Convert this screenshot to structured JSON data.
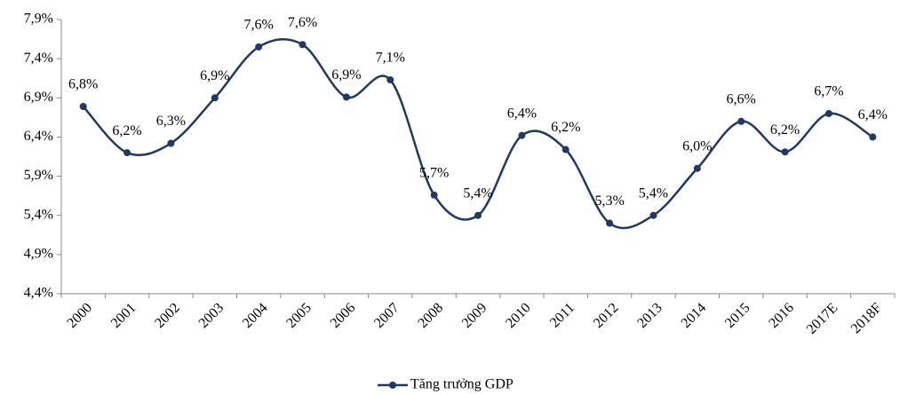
{
  "chart_data": {
    "type": "line",
    "categories": [
      "2000",
      "2001",
      "2002",
      "2003",
      "2004",
      "2005",
      "2006",
      "2007",
      "2008",
      "2009",
      "2010",
      "2011",
      "2012",
      "2013",
      "2014",
      "2015",
      "2016",
      "2017E",
      "2018F"
    ],
    "series": [
      {
        "name": "Tăng trưởng GDP",
        "color": "#1f3864",
        "values": [
          6.79,
          6.2,
          6.32,
          6.9,
          7.55,
          7.58,
          6.91,
          7.13,
          5.66,
          5.4,
          6.42,
          6.24,
          5.3,
          5.4,
          6.0,
          6.6,
          6.21,
          6.7,
          6.4
        ],
        "value_labels": [
          "6,8%",
          "6,2%",
          "6,3%",
          "6,9%",
          "7,6%",
          "7,6%",
          "6,9%",
          "7,1%",
          "5,7%",
          "5,4%",
          "6,4%",
          "6,2%",
          "5,3%",
          "5,4%",
          "6,0%",
          "6,6%",
          "6,2%",
          "6,7%",
          "6,4%"
        ]
      }
    ],
    "ylim": [
      4.4,
      7.9
    ],
    "yticks": [
      {
        "value": 4.4,
        "label": "4,4%"
      },
      {
        "value": 4.9,
        "label": "4,9%"
      },
      {
        "value": 5.4,
        "label": "5,4%"
      },
      {
        "value": 5.9,
        "label": "5,9%"
      },
      {
        "value": 6.4,
        "label": "6,4%"
      },
      {
        "value": 6.9,
        "label": "6,9%"
      },
      {
        "value": 7.4,
        "label": "7,4%"
      },
      {
        "value": 7.9,
        "label": "7,9%"
      }
    ],
    "smooth": true,
    "legend": "bottom"
  }
}
